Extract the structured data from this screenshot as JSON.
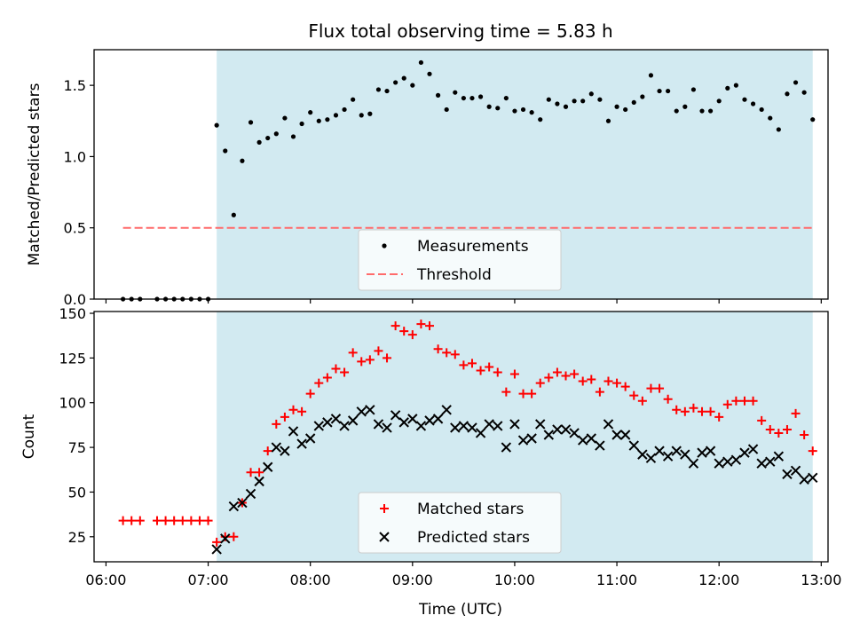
{
  "title": "Flux total observing time = 5.83 h",
  "xlabel": "Time (UTC)",
  "xticks": [
    "06:00",
    "07:00",
    "08:00",
    "09:00",
    "10:00",
    "11:00",
    "12:00",
    "13:00"
  ],
  "colors": {
    "shade": "#add8e6",
    "measurement": "#000000",
    "threshold": "#ff6b6b",
    "matched": "#ff0000",
    "predicted": "#000000"
  },
  "chart_data": [
    {
      "type": "scatter",
      "title": "Flux total observing time = 5.83 h",
      "xlabel": "",
      "ylabel": "Matched/Predicted stars",
      "xlim": [
        "06:00",
        "13:00"
      ],
      "ylim": [
        0,
        1.75
      ],
      "yticks": [
        0.0,
        0.5,
        1.0,
        1.5
      ],
      "yticklabels": [
        "0.0",
        "0.5",
        "1.0",
        "1.5"
      ],
      "shaded_interval": [
        "07:05",
        "12:55"
      ],
      "threshold": {
        "name": "Threshold",
        "value": 0.5,
        "x_range": [
          "06:10",
          "12:55"
        ],
        "style": "dashed"
      },
      "legend": {
        "placement": "lower-center",
        "entries": [
          "Measurements",
          "Threshold"
        ]
      },
      "series": [
        {
          "name": "Measurements",
          "marker": "dot",
          "points": [
            [
              "06:10",
              0
            ],
            [
              "06:15",
              0
            ],
            [
              "06:20",
              0
            ],
            [
              "06:30",
              0
            ],
            [
              "06:35",
              0
            ],
            [
              "06:40",
              0
            ],
            [
              "06:45",
              0
            ],
            [
              "06:50",
              0
            ],
            [
              "06:55",
              0
            ],
            [
              "07:00",
              0
            ],
            [
              "07:05",
              1.22
            ],
            [
              "07:10",
              1.04
            ],
            [
              "07:15",
              0.59
            ],
            [
              "07:20",
              0.97
            ],
            [
              "07:25",
              1.24
            ],
            [
              "07:30",
              1.1
            ],
            [
              "07:35",
              1.13
            ],
            [
              "07:40",
              1.16
            ],
            [
              "07:45",
              1.27
            ],
            [
              "07:50",
              1.14
            ],
            [
              "07:55",
              1.23
            ],
            [
              "08:00",
              1.31
            ],
            [
              "08:05",
              1.25
            ],
            [
              "08:10",
              1.26
            ],
            [
              "08:15",
              1.29
            ],
            [
              "08:20",
              1.33
            ],
            [
              "08:25",
              1.4
            ],
            [
              "08:30",
              1.29
            ],
            [
              "08:35",
              1.3
            ],
            [
              "08:40",
              1.47
            ],
            [
              "08:45",
              1.46
            ],
            [
              "08:50",
              1.52
            ],
            [
              "08:55",
              1.55
            ],
            [
              "09:00",
              1.5
            ],
            [
              "09:05",
              1.66
            ],
            [
              "09:10",
              1.58
            ],
            [
              "09:15",
              1.43
            ],
            [
              "09:20",
              1.33
            ],
            [
              "09:25",
              1.45
            ],
            [
              "09:30",
              1.41
            ],
            [
              "09:35",
              1.41
            ],
            [
              "09:40",
              1.42
            ],
            [
              "09:45",
              1.35
            ],
            [
              "09:50",
              1.34
            ],
            [
              "09:55",
              1.41
            ],
            [
              "10:00",
              1.32
            ],
            [
              "10:05",
              1.33
            ],
            [
              "10:10",
              1.31
            ],
            [
              "10:15",
              1.26
            ],
            [
              "10:20",
              1.4
            ],
            [
              "10:25",
              1.37
            ],
            [
              "10:30",
              1.35
            ],
            [
              "10:35",
              1.39
            ],
            [
              "10:40",
              1.39
            ],
            [
              "10:45",
              1.44
            ],
            [
              "10:50",
              1.4
            ],
            [
              "10:55",
              1.25
            ],
            [
              "11:00",
              1.35
            ],
            [
              "11:05",
              1.33
            ],
            [
              "11:10",
              1.38
            ],
            [
              "11:15",
              1.42
            ],
            [
              "11:20",
              1.57
            ],
            [
              "11:25",
              1.46
            ],
            [
              "11:30",
              1.46
            ],
            [
              "11:35",
              1.32
            ],
            [
              "11:40",
              1.35
            ],
            [
              "11:45",
              1.47
            ],
            [
              "11:50",
              1.32
            ],
            [
              "11:55",
              1.32
            ],
            [
              "12:00",
              1.39
            ],
            [
              "12:05",
              1.48
            ],
            [
              "12:10",
              1.5
            ],
            [
              "12:15",
              1.4
            ],
            [
              "12:20",
              1.37
            ],
            [
              "12:25",
              1.33
            ],
            [
              "12:30",
              1.27
            ],
            [
              "12:35",
              1.19
            ],
            [
              "12:40",
              1.44
            ],
            [
              "12:45",
              1.52
            ],
            [
              "12:50",
              1.45
            ],
            [
              "12:55",
              1.26
            ]
          ]
        }
      ]
    },
    {
      "type": "scatter",
      "title": "",
      "xlabel": "Time (UTC)",
      "ylabel": "Count",
      "xlim": [
        "06:00",
        "13:00"
      ],
      "ylim": [
        11,
        151
      ],
      "yticks": [
        25,
        50,
        75,
        100,
        125,
        150
      ],
      "yticklabels": [
        "25",
        "50",
        "75",
        "100",
        "125",
        "150"
      ],
      "shaded_interval": [
        "07:05",
        "12:55"
      ],
      "legend": {
        "placement": "lower-center",
        "entries": [
          "Matched stars",
          "Predicted stars"
        ]
      },
      "series": [
        {
          "name": "Matched stars",
          "marker": "plus",
          "points": [
            [
              "06:10",
              34
            ],
            [
              "06:15",
              34
            ],
            [
              "06:20",
              34
            ],
            [
              "06:30",
              34
            ],
            [
              "06:35",
              34
            ],
            [
              "06:40",
              34
            ],
            [
              "06:45",
              34
            ],
            [
              "06:50",
              34
            ],
            [
              "06:55",
              34
            ],
            [
              "07:00",
              34
            ],
            [
              "07:05",
              22
            ],
            [
              "07:10",
              25
            ],
            [
              "07:15",
              25
            ],
            [
              "07:20",
              44
            ],
            [
              "07:25",
              61
            ],
            [
              "07:30",
              61
            ],
            [
              "07:35",
              73
            ],
            [
              "07:40",
              88
            ],
            [
              "07:45",
              92
            ],
            [
              "07:50",
              96
            ],
            [
              "07:55",
              95
            ],
            [
              "08:00",
              105
            ],
            [
              "08:05",
              111
            ],
            [
              "08:10",
              114
            ],
            [
              "08:15",
              119
            ],
            [
              "08:20",
              117
            ],
            [
              "08:25",
              128
            ],
            [
              "08:30",
              123
            ],
            [
              "08:35",
              124
            ],
            [
              "08:40",
              129
            ],
            [
              "08:45",
              125
            ],
            [
              "08:50",
              143
            ],
            [
              "08:55",
              140
            ],
            [
              "09:00",
              138
            ],
            [
              "09:05",
              144
            ],
            [
              "09:10",
              143
            ],
            [
              "09:15",
              130
            ],
            [
              "09:20",
              128
            ],
            [
              "09:25",
              127
            ],
            [
              "09:30",
              121
            ],
            [
              "09:35",
              122
            ],
            [
              "09:40",
              118
            ],
            [
              "09:45",
              120
            ],
            [
              "09:50",
              117
            ],
            [
              "09:55",
              106
            ],
            [
              "10:00",
              116
            ],
            [
              "10:05",
              105
            ],
            [
              "10:10",
              105
            ],
            [
              "10:15",
              111
            ],
            [
              "10:20",
              114
            ],
            [
              "10:25",
              117
            ],
            [
              "10:30",
              115
            ],
            [
              "10:35",
              116
            ],
            [
              "10:40",
              112
            ],
            [
              "10:45",
              113
            ],
            [
              "10:50",
              106
            ],
            [
              "10:55",
              112
            ],
            [
              "11:00",
              111
            ],
            [
              "11:05",
              109
            ],
            [
              "11:10",
              104
            ],
            [
              "11:15",
              101
            ],
            [
              "11:20",
              108
            ],
            [
              "11:25",
              108
            ],
            [
              "11:30",
              102
            ],
            [
              "11:35",
              96
            ],
            [
              "11:40",
              95
            ],
            [
              "11:45",
              97
            ],
            [
              "11:50",
              95
            ],
            [
              "11:55",
              95
            ],
            [
              "12:00",
              92
            ],
            [
              "12:05",
              99
            ],
            [
              "12:10",
              101
            ],
            [
              "12:15",
              101
            ],
            [
              "12:20",
              101
            ],
            [
              "12:25",
              90
            ],
            [
              "12:30",
              85
            ],
            [
              "12:35",
              83
            ],
            [
              "12:40",
              85
            ],
            [
              "12:45",
              94
            ],
            [
              "12:50",
              82
            ],
            [
              "12:55",
              73
            ]
          ]
        },
        {
          "name": "Predicted stars",
          "marker": "x",
          "points": [
            [
              "07:05",
              18
            ],
            [
              "07:10",
              24
            ],
            [
              "07:15",
              42
            ],
            [
              "07:20",
              44
            ],
            [
              "07:25",
              49
            ],
            [
              "07:30",
              56
            ],
            [
              "07:35",
              64
            ],
            [
              "07:40",
              75
            ],
            [
              "07:45",
              73
            ],
            [
              "07:50",
              84
            ],
            [
              "07:55",
              77
            ],
            [
              "08:00",
              80
            ],
            [
              "08:05",
              87
            ],
            [
              "08:10",
              89
            ],
            [
              "08:15",
              91
            ],
            [
              "08:20",
              87
            ],
            [
              "08:25",
              90
            ],
            [
              "08:30",
              95
            ],
            [
              "08:35",
              96
            ],
            [
              "08:40",
              88
            ],
            [
              "08:45",
              86
            ],
            [
              "08:50",
              93
            ],
            [
              "08:55",
              89
            ],
            [
              "09:00",
              91
            ],
            [
              "09:05",
              87
            ],
            [
              "09:10",
              90
            ],
            [
              "09:15",
              91
            ],
            [
              "09:20",
              96
            ],
            [
              "09:25",
              86
            ],
            [
              "09:30",
              87
            ],
            [
              "09:35",
              86
            ],
            [
              "09:40",
              83
            ],
            [
              "09:45",
              88
            ],
            [
              "09:50",
              87
            ],
            [
              "09:55",
              75
            ],
            [
              "10:00",
              88
            ],
            [
              "10:05",
              79
            ],
            [
              "10:10",
              80
            ],
            [
              "10:15",
              88
            ],
            [
              "10:20",
              82
            ],
            [
              "10:25",
              85
            ],
            [
              "10:30",
              85
            ],
            [
              "10:35",
              83
            ],
            [
              "10:40",
              79
            ],
            [
              "10:45",
              80
            ],
            [
              "10:50",
              76
            ],
            [
              "10:55",
              88
            ],
            [
              "11:00",
              82
            ],
            [
              "11:05",
              82
            ],
            [
              "11:10",
              76
            ],
            [
              "11:15",
              71
            ],
            [
              "11:20",
              69
            ],
            [
              "11:25",
              73
            ],
            [
              "11:30",
              70
            ],
            [
              "11:35",
              73
            ],
            [
              "11:40",
              71
            ],
            [
              "11:45",
              66
            ],
            [
              "11:50",
              72
            ],
            [
              "11:55",
              73
            ],
            [
              "12:00",
              66
            ],
            [
              "12:05",
              67
            ],
            [
              "12:10",
              68
            ],
            [
              "12:15",
              72
            ],
            [
              "12:20",
              74
            ],
            [
              "12:25",
              66
            ],
            [
              "12:30",
              67
            ],
            [
              "12:35",
              70
            ],
            [
              "12:40",
              60
            ],
            [
              "12:45",
              62
            ],
            [
              "12:50",
              57
            ],
            [
              "12:55",
              58
            ]
          ]
        }
      ]
    }
  ]
}
